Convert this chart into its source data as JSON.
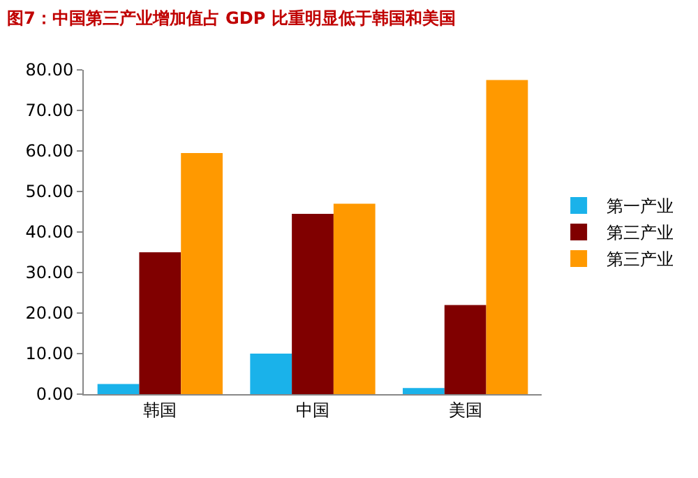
{
  "chart_data": {
    "type": "bar",
    "title": "图7：中国第三产业增加值占 GDP 比重明显低于韩国和美国",
    "categories": [
      "韩国",
      "中国",
      "美国"
    ],
    "series": [
      {
        "name": "第一产业",
        "color": "#1ab2ea",
        "values": [
          2.5,
          10,
          1.5
        ]
      },
      {
        "name": "第三产业",
        "color": "#800000",
        "values": [
          35,
          44.5,
          22
        ]
      },
      {
        "name": "第三产业",
        "color": "#ff9900",
        "values": [
          59.5,
          47,
          77.5
        ]
      }
    ],
    "ylim": [
      0,
      80
    ],
    "yticks": [
      {
        "value": 0,
        "label": "0.00"
      },
      {
        "value": 10,
        "label": "10.00"
      },
      {
        "value": 20,
        "label": "20.00"
      },
      {
        "value": 30,
        "label": "30.00"
      },
      {
        "value": 40,
        "label": "40.00"
      },
      {
        "value": 50,
        "label": "50.00"
      },
      {
        "value": 60,
        "label": "60.00"
      },
      {
        "value": 70,
        "label": "70.00"
      },
      {
        "value": 80,
        "label": "80.00"
      }
    ],
    "grid": false,
    "legend": "right"
  }
}
